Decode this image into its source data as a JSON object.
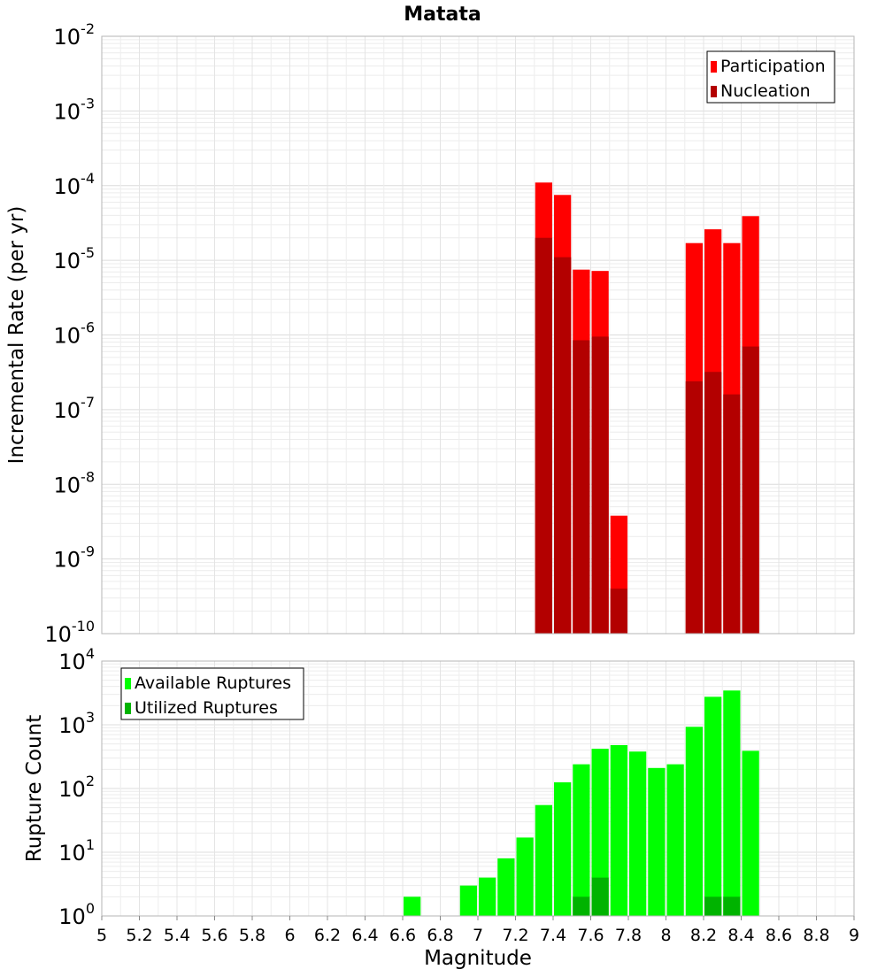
{
  "chart_data": [
    {
      "type": "bar",
      "title": "Matata",
      "ylabel": "Incremental Rate (per yr)",
      "xlabel": "",
      "y_scale": "log",
      "ylim_exponents": [
        -10,
        -2
      ],
      "xlim": [
        5,
        9
      ],
      "grid": true,
      "legend_position": "top-right",
      "bin_width": 0.1,
      "series": [
        {
          "name": "Participation",
          "color": "#ff0000",
          "x": [
            7.35,
            7.45,
            7.55,
            7.65,
            7.75,
            8.15,
            8.25,
            8.35,
            8.45
          ],
          "values": [
            0.00011,
            7.5e-05,
            7.5e-06,
            7.2e-06,
            3.8e-09,
            1.7e-05,
            2.6e-05,
            1.7e-05,
            3.9e-05
          ]
        },
        {
          "name": "Nucleation",
          "color": "#b30000",
          "x": [
            7.35,
            7.45,
            7.55,
            7.65,
            7.75,
            8.15,
            8.25,
            8.35,
            8.45
          ],
          "values": [
            2e-05,
            1.1e-05,
            8.5e-07,
            9.5e-07,
            4e-10,
            2.4e-07,
            3.2e-07,
            1.6e-07,
            7e-07
          ]
        }
      ]
    },
    {
      "type": "bar",
      "title": "",
      "ylabel": "Rupture Count",
      "xlabel": "Magnitude",
      "y_scale": "log",
      "ylim_exponents": [
        0,
        4
      ],
      "xlim": [
        5,
        9
      ],
      "grid": true,
      "legend_position": "top-left",
      "bin_width": 0.1,
      "x_ticks": [
        "5",
        "5.2",
        "5.4",
        "5.6",
        "5.8",
        "6",
        "6.2",
        "6.4",
        "6.6",
        "6.8",
        "7",
        "7.2",
        "7.4",
        "7.6",
        "7.8",
        "8",
        "8.2",
        "8.4",
        "8.6",
        "8.8",
        "9"
      ],
      "series": [
        {
          "name": "Available Ruptures",
          "color": "#00ff00",
          "x": [
            6.65,
            6.85,
            6.95,
            7.05,
            7.15,
            7.25,
            7.35,
            7.45,
            7.55,
            7.65,
            7.75,
            7.85,
            7.95,
            8.05,
            8.15,
            8.25,
            8.35,
            8.45
          ],
          "values": [
            2,
            1,
            3,
            4,
            8,
            17,
            55,
            125,
            240,
            420,
            480,
            380,
            210,
            240,
            930,
            2750,
            3450,
            390
          ]
        },
        {
          "name": "Utilized Ruptures",
          "color": "#00b300",
          "x": [
            7.35,
            7.45,
            7.55,
            7.65,
            7.75,
            8.15,
            8.25,
            8.35,
            8.45
          ],
          "values": [
            1,
            1,
            2,
            4,
            1,
            1,
            2,
            2,
            1
          ]
        }
      ]
    }
  ]
}
